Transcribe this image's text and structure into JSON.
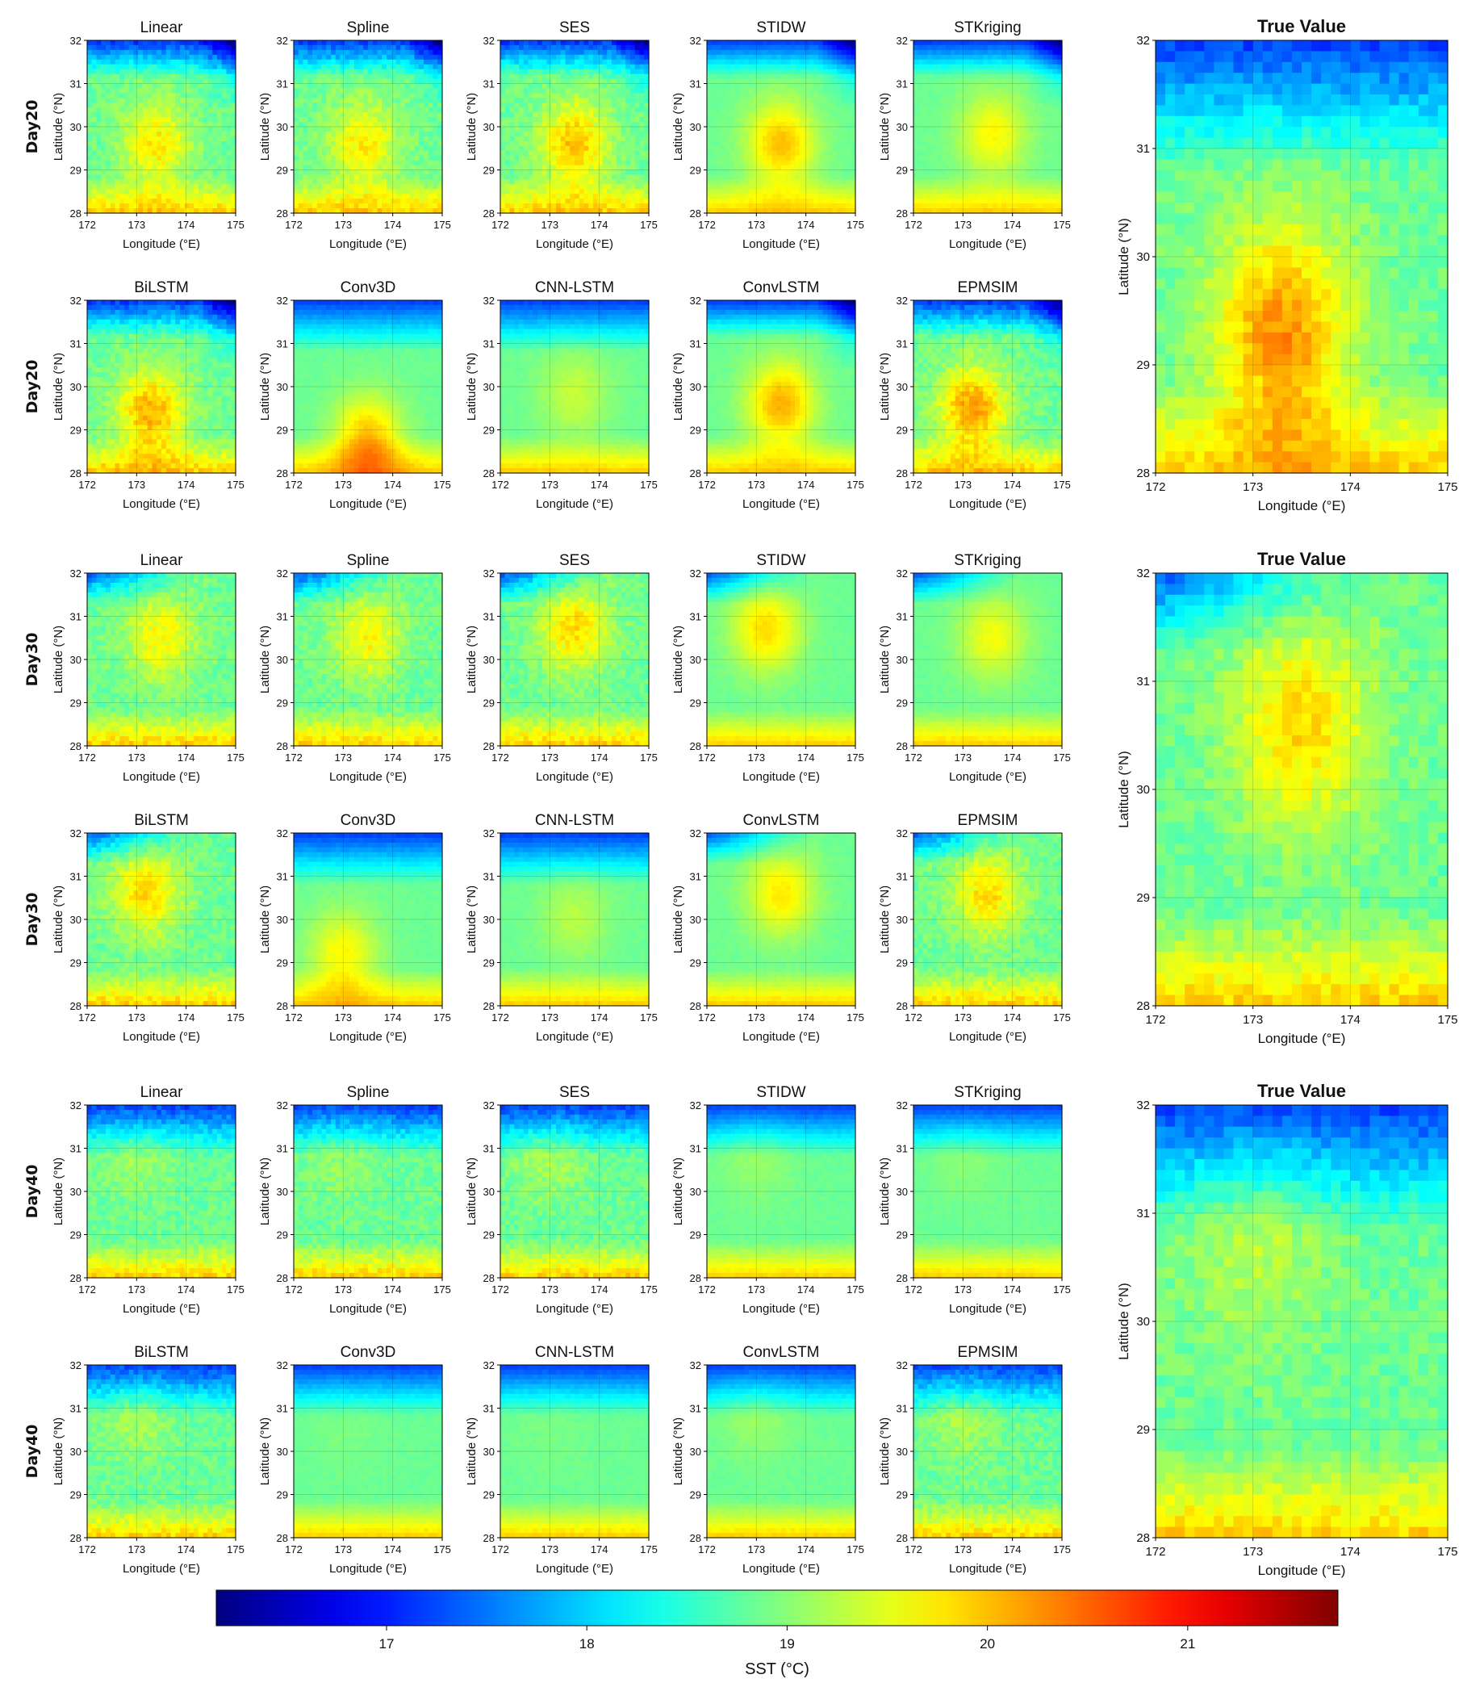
{
  "chart_data": {
    "type": "heatmap",
    "description_variable": "SST (°C)",
    "blocks": [
      {
        "day_label": "Day20",
        "row_labels": [
          "Day20",
          "Day20"
        ],
        "panels_row1": [
          {
            "title": "Linear",
            "hotspot": [
              173.4,
              29.6
            ],
            "warm": 0.55,
            "cold_corner": "top-right"
          },
          {
            "title": "Spline",
            "hotspot": [
              173.4,
              29.6
            ],
            "warm": 0.55,
            "cold_corner": "top-right"
          },
          {
            "title": "SES",
            "hotspot": [
              173.5,
              29.6
            ],
            "warm": 0.7,
            "cold_corner": "top-right"
          },
          {
            "title": "STIDW",
            "hotspot": [
              173.5,
              29.6
            ],
            "warm": 0.7,
            "cold_corner": "top-right"
          },
          {
            "title": "STKriging",
            "hotspot": [
              173.6,
              29.8
            ],
            "warm": 0.5,
            "cold_corner": "top-right"
          }
        ],
        "panels_row2": [
          {
            "title": "BiLSTM",
            "hotspot": [
              173.3,
              29.4
            ],
            "warm": 0.75,
            "cold_corner": "top-right"
          },
          {
            "title": "Conv3D",
            "hotspot": [
              173.5,
              28.8
            ],
            "warm": 0.7,
            "cold_corner": "top"
          },
          {
            "title": "CNN-LSTM",
            "hotspot": [
              173.5,
              29.8
            ],
            "warm": 0.3,
            "cold_corner": "top"
          },
          {
            "title": "ConvLSTM",
            "hotspot": [
              173.5,
              29.6
            ],
            "warm": 0.75,
            "cold_corner": "top-right"
          },
          {
            "title": "EPMSIM",
            "hotspot": [
              173.2,
              29.5
            ],
            "warm": 0.8,
            "cold_corner": "top-right"
          }
        ],
        "true_value": {
          "title": "True Value",
          "hotspot": [
            173.3,
            29.3
          ],
          "warm": 0.85,
          "cold_corner": "top"
        }
      },
      {
        "day_label": "Day30",
        "row_labels": [
          "Day30",
          "Day30"
        ],
        "panels_row1": [
          {
            "title": "Linear",
            "hotspot": [
              173.5,
              30.5
            ],
            "warm": 0.5,
            "cold_corner": "top-left"
          },
          {
            "title": "Spline",
            "hotspot": [
              173.5,
              30.5
            ],
            "warm": 0.5,
            "cold_corner": "top-left"
          },
          {
            "title": "SES",
            "hotspot": [
              173.5,
              30.7
            ],
            "warm": 0.6,
            "cold_corner": "top-left"
          },
          {
            "title": "STIDW",
            "hotspot": [
              173.2,
              30.7
            ],
            "warm": 0.6,
            "cold_corner": "top-left"
          },
          {
            "title": "STKriging",
            "hotspot": [
              173.6,
              30.5
            ],
            "warm": 0.45,
            "cold_corner": "top-left"
          }
        ],
        "panels_row2": [
          {
            "title": "BiLSTM",
            "hotspot": [
              173.2,
              30.6
            ],
            "warm": 0.6,
            "cold_corner": "top-left"
          },
          {
            "title": "Conv3D",
            "hotspot": [
              173.0,
              29.2
            ],
            "warm": 0.5,
            "cold_corner": "top"
          },
          {
            "title": "CNN-LSTM",
            "hotspot": [
              173.5,
              30.0
            ],
            "warm": 0.25,
            "cold_corner": "top"
          },
          {
            "title": "ConvLSTM",
            "hotspot": [
              173.5,
              30.6
            ],
            "warm": 0.55,
            "cold_corner": "top-left"
          },
          {
            "title": "EPMSIM",
            "hotspot": [
              173.5,
              30.6
            ],
            "warm": 0.6,
            "cold_corner": "top-left"
          }
        ],
        "true_value": {
          "title": "True Value",
          "hotspot": [
            173.5,
            30.6
          ],
          "warm": 0.6,
          "cold_corner": "top-left"
        }
      },
      {
        "day_label": "Day40",
        "row_labels": [
          "Day40",
          "Day40"
        ],
        "panels_row1": [
          {
            "title": "Linear",
            "hotspot": [
              173.0,
              30.8
            ],
            "warm": 0.15,
            "cold_corner": "top"
          },
          {
            "title": "Spline",
            "hotspot": [
              173.0,
              30.8
            ],
            "warm": 0.15,
            "cold_corner": "top"
          },
          {
            "title": "SES",
            "hotspot": [
              173.0,
              30.8
            ],
            "warm": 0.2,
            "cold_corner": "top"
          },
          {
            "title": "STIDW",
            "hotspot": [
              173.0,
              30.8
            ],
            "warm": 0.15,
            "cold_corner": "top"
          },
          {
            "title": "STKriging",
            "hotspot": [
              173.0,
              30.8
            ],
            "warm": 0.1,
            "cold_corner": "top"
          }
        ],
        "panels_row2": [
          {
            "title": "BiLSTM",
            "hotspot": [
              173.0,
              30.8
            ],
            "warm": 0.2,
            "cold_corner": "top"
          },
          {
            "title": "Conv3D",
            "hotspot": [
              173.0,
              30.5
            ],
            "warm": 0.05,
            "cold_corner": "top"
          },
          {
            "title": "CNN-LSTM",
            "hotspot": [
              173.0,
              30.5
            ],
            "warm": 0.05,
            "cold_corner": "top"
          },
          {
            "title": "ConvLSTM",
            "hotspot": [
              173.0,
              30.8
            ],
            "warm": 0.15,
            "cold_corner": "top"
          },
          {
            "title": "EPMSIM",
            "hotspot": [
              173.0,
              30.8
            ],
            "warm": 0.2,
            "cold_corner": "top"
          }
        ],
        "true_value": {
          "title": "True Value",
          "hotspot": [
            173.0,
            30.8
          ],
          "warm": 0.25,
          "cold_corner": "top"
        }
      }
    ],
    "x_axis": {
      "label": "Longitude (°E)",
      "ticks": [
        "172",
        "173",
        "174",
        "175"
      ],
      "range": [
        172,
        175
      ]
    },
    "y_axis": {
      "label": "Latitude (°N)",
      "ticks": [
        "28",
        "29",
        "30",
        "31",
        "32"
      ],
      "range": [
        28,
        32
      ]
    },
    "colorbar": {
      "label": "SST (°C)",
      "ticks": [
        "17",
        "18",
        "19",
        "20",
        "21"
      ],
      "range": [
        16.15,
        21.75
      ],
      "colormap": "jet",
      "orientation": "horizontal",
      "placement": "bottom"
    },
    "grid": true
  }
}
